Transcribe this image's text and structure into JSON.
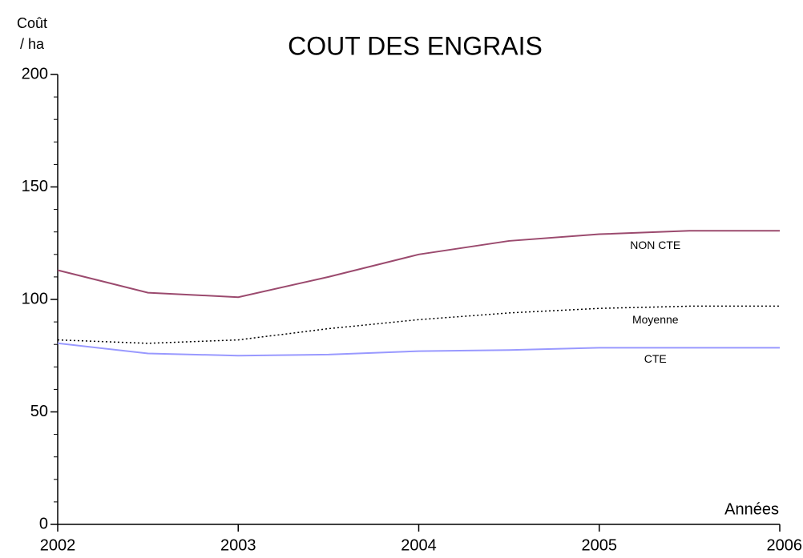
{
  "chart_data": {
    "type": "line",
    "title": "COUT DES ENGRAIS",
    "ylabel": [
      "Coût",
      "/ ha"
    ],
    "xlabel": "Années",
    "x": [
      2002,
      2002.5,
      2003,
      2003.5,
      2004,
      2004.5,
      2005,
      2005.5,
      2006
    ],
    "series": [
      {
        "name": "NON CTE",
        "color": "#9b4a6e",
        "dash": "solid",
        "values": [
          113,
          103,
          101,
          110,
          120,
          126,
          129,
          130.5,
          130.5
        ]
      },
      {
        "name": "Moyenne",
        "color": "#000000",
        "dash": "dotted",
        "values": [
          82,
          80.5,
          82,
          87,
          91,
          94,
          96,
          97,
          97
        ]
      },
      {
        "name": "CTE",
        "color": "#9999ff",
        "dash": "solid",
        "values": [
          80.5,
          76,
          75,
          75.5,
          77,
          77.5,
          78.5,
          78.5,
          78.5
        ]
      }
    ],
    "xlim": [
      2002,
      2006
    ],
    "xticks": [
      2002,
      2003,
      2004,
      2005,
      2006
    ],
    "ylim": [
      0,
      200
    ],
    "yticks": [
      0,
      50,
      100,
      150,
      200
    ],
    "yminorticks": [
      10,
      20,
      30,
      40,
      60,
      70,
      80,
      90,
      110,
      120,
      130,
      140,
      160,
      170,
      180,
      190
    ]
  }
}
